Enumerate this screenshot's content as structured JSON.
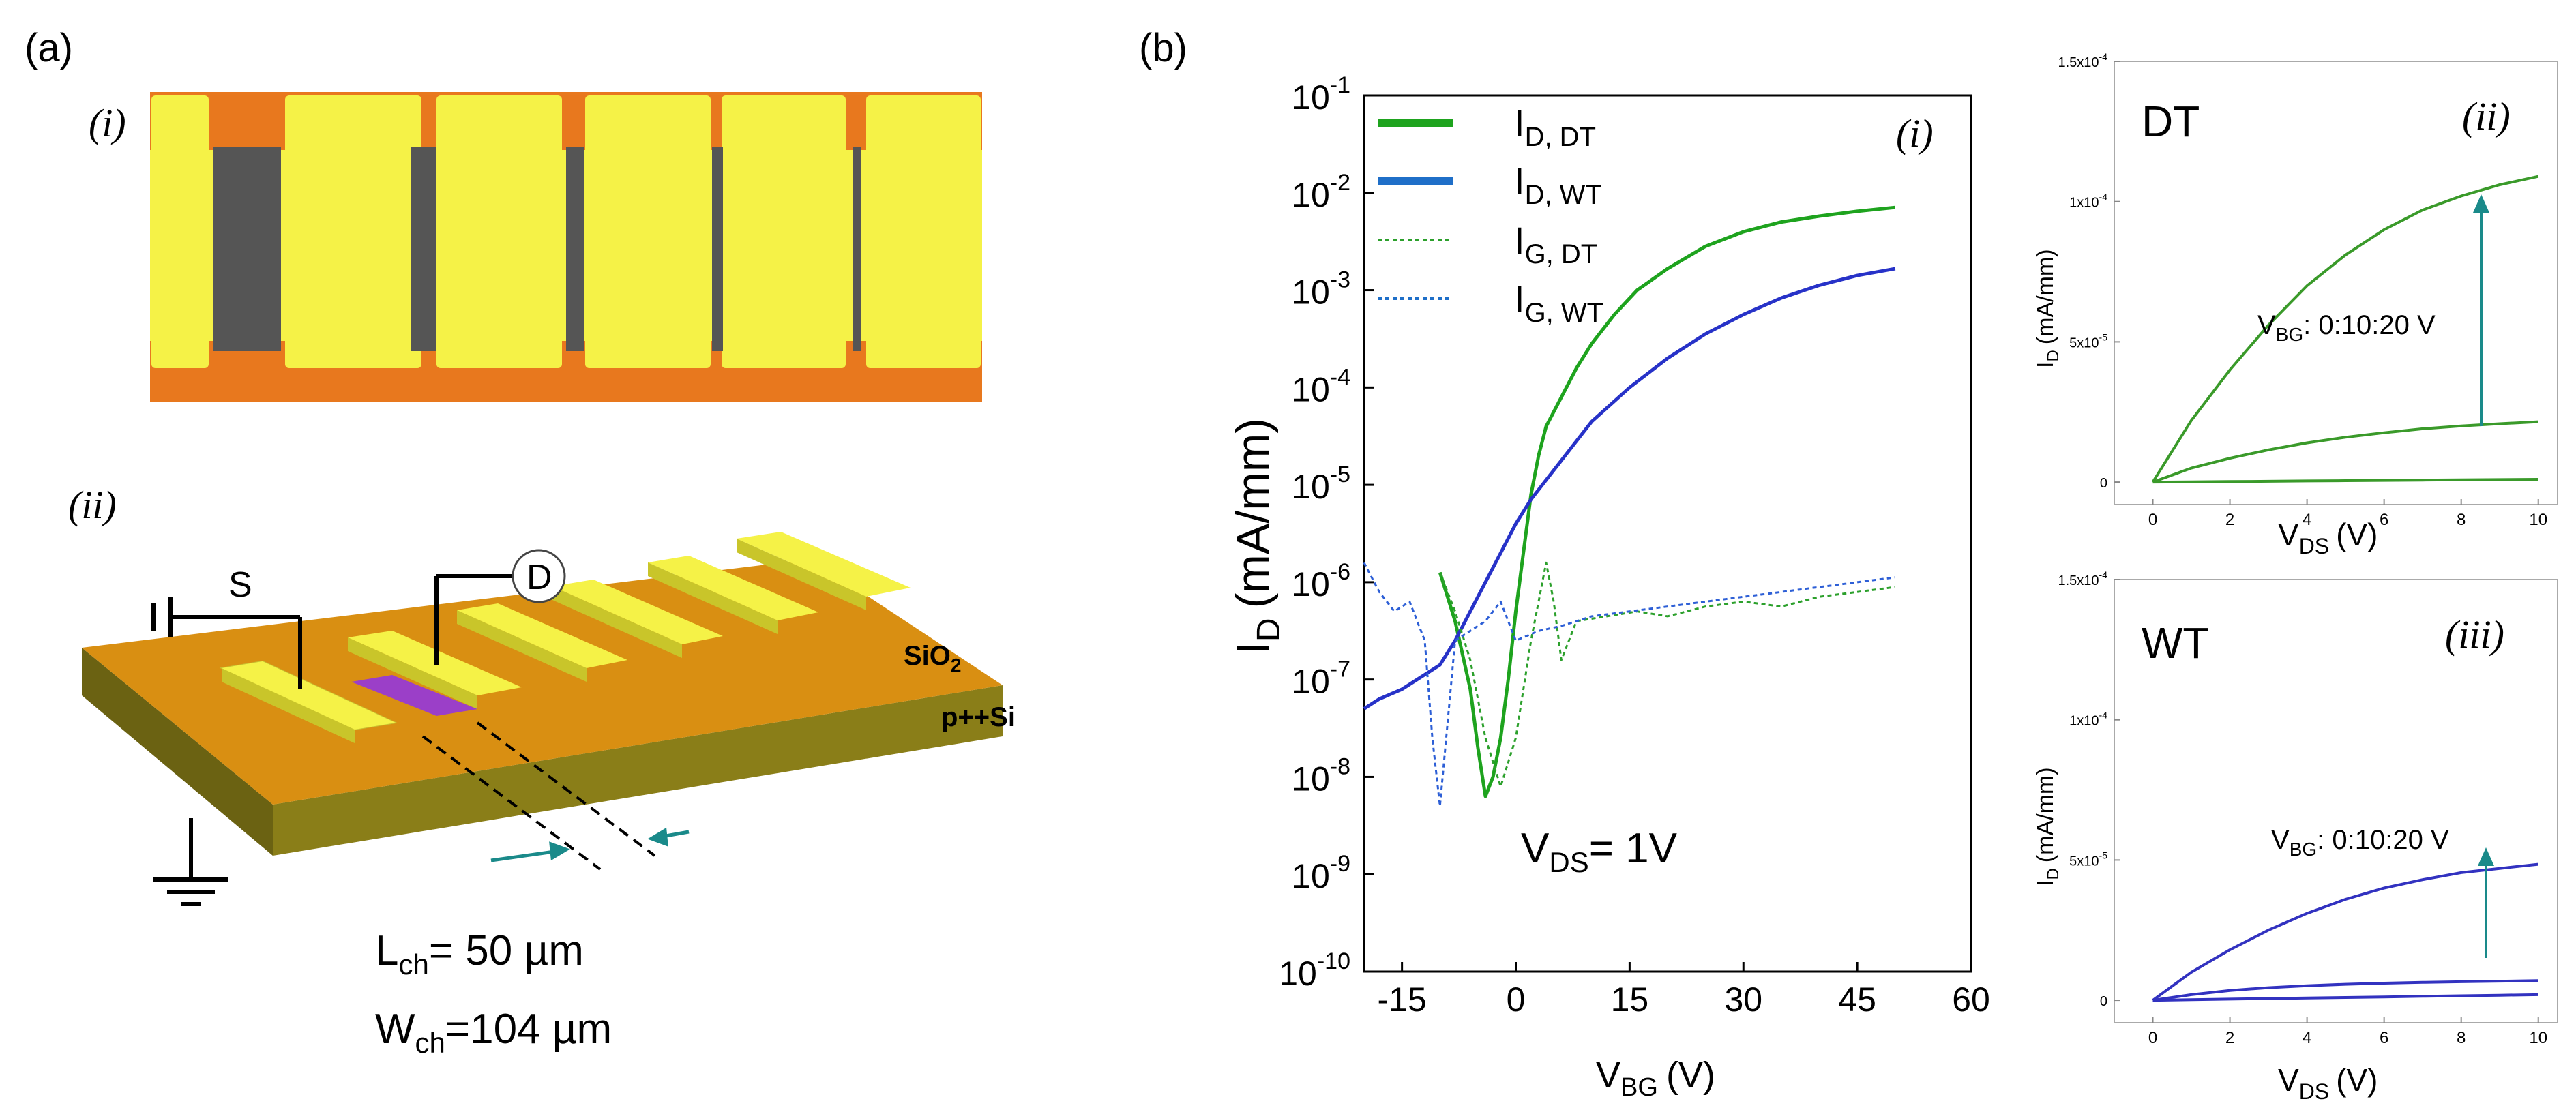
{
  "panel_a": {
    "label": "(a)",
    "sub_i": "(i)",
    "sub_ii": "(ii)",
    "source_label": "S",
    "drain_label": "D",
    "oxide_label": "SiO",
    "oxide_sub": "2",
    "substrate_label": "p++Si",
    "lch_main": "L",
    "lch_sub": "ch",
    "lch_value": "= 50 µm",
    "wch_main": "W",
    "wch_sub": "ch",
    "wch_value": "=104 µm",
    "colors": {
      "gold": "#f5f247",
      "orange": "#e8781e",
      "channel": "#555555",
      "oxide": "#d98f12",
      "silicon": "#7a6f10"
    }
  },
  "panel_b": {
    "label": "(b)",
    "sub_i": "(i)",
    "sub_ii": "(ii)",
    "sub_iii": "(iii)",
    "vds_main": "V",
    "vds_sub": "DS",
    "vds_value": "= 1V",
    "dt_label": "DT",
    "wt_label": "WT",
    "vbg_annot_main": "V",
    "vbg_annot_sub": "BG",
    "vbg_annot_value": ": 0:10:20 V"
  },
  "chart_data": [
    {
      "type": "line",
      "xlabel": "V",
      "xlabel_sub": "BG",
      "xlabel_unit": "(V)",
      "ylabel": "I",
      "ylabel_sub": "D",
      "ylabel_unit": "(mA/mm)",
      "xlim": [
        -20,
        60
      ],
      "ylim_log10": [
        -10,
        -1
      ],
      "y_scale": "log",
      "xticks": [
        "-15",
        "0",
        "15",
        "30",
        "45",
        "60"
      ],
      "ytick_exponents": [
        "-1",
        "-2",
        "-3",
        "-4",
        "-5",
        "-6",
        "-7",
        "-8",
        "-9",
        "-10"
      ],
      "legend_position": "top-left",
      "series": [
        {
          "name_main": "I",
          "name_sub": "D, DT",
          "color": "#1ea31e",
          "style": "solid",
          "x": [
            -10,
            -8,
            -6,
            -5,
            -4,
            -3,
            -2,
            -1,
            0,
            1,
            2,
            3,
            4,
            6,
            8,
            10,
            13,
            16,
            20,
            25,
            30,
            35,
            40,
            45,
            50
          ],
          "y_log10": [
            -5.9,
            -6.4,
            -7.1,
            -7.7,
            -8.2,
            -8.0,
            -7.6,
            -7.0,
            -6.3,
            -5.7,
            -5.1,
            -4.7,
            -4.4,
            -4.1,
            -3.8,
            -3.55,
            -3.25,
            -3.0,
            -2.78,
            -2.55,
            -2.4,
            -2.3,
            -2.24,
            -2.19,
            -2.15
          ]
        },
        {
          "name_main": "I",
          "name_sub": "D, WT",
          "color": "#2732c8",
          "style": "solid",
          "x": [
            -20,
            -18,
            -15,
            -12,
            -10,
            -8,
            -6,
            -4,
            -2,
            0,
            2,
            4,
            6,
            8,
            10,
            15,
            20,
            25,
            30,
            35,
            40,
            45,
            50
          ],
          "y_log10": [
            -7.3,
            -7.2,
            -7.1,
            -6.95,
            -6.85,
            -6.6,
            -6.3,
            -6.0,
            -5.7,
            -5.4,
            -5.15,
            -4.95,
            -4.75,
            -4.55,
            -4.35,
            -4.0,
            -3.7,
            -3.45,
            -3.25,
            -3.08,
            -2.95,
            -2.85,
            -2.78
          ]
        },
        {
          "name_main": "I",
          "name_sub": "G, DT",
          "color": "#2ca02c",
          "style": "dotted",
          "x": [
            -10,
            -8,
            -6,
            -4,
            -2,
            0,
            2,
            4,
            5,
            6,
            8,
            12,
            16,
            20,
            25,
            30,
            35,
            40,
            45,
            50
          ],
          "y_log10": [
            -5.9,
            -6.3,
            -6.8,
            -7.6,
            -8.1,
            -7.6,
            -6.6,
            -5.8,
            -6.2,
            -6.8,
            -6.4,
            -6.35,
            -6.3,
            -6.35,
            -6.25,
            -6.2,
            -6.25,
            -6.15,
            -6.1,
            -6.05
          ]
        },
        {
          "name_main": "I",
          "name_sub": "G, WT",
          "color": "#2d5fd6",
          "style": "dotted",
          "x": [
            -20,
            -18,
            -16,
            -14,
            -12,
            -11,
            -10,
            -8,
            -6,
            -4,
            -2,
            0,
            3,
            6,
            10,
            15,
            20,
            25,
            30,
            35,
            40,
            45,
            50
          ],
          "y_log10": [
            -5.8,
            -6.1,
            -6.3,
            -6.2,
            -6.6,
            -7.6,
            -8.3,
            -6.6,
            -6.5,
            -6.4,
            -6.2,
            -6.6,
            -6.5,
            -6.45,
            -6.35,
            -6.3,
            -6.25,
            -6.2,
            -6.15,
            -6.1,
            -6.05,
            -6.0,
            -5.95
          ]
        }
      ]
    },
    {
      "type": "line",
      "xlabel": "V",
      "xlabel_sub": "DS",
      "xlabel_unit": "(V)",
      "ylabel": "I",
      "ylabel_sub": "D",
      "ylabel_unit": "(mA/mm)",
      "xlim": [
        -1,
        10.5
      ],
      "ylim": [
        -0.08,
        1.5
      ],
      "yscale_exp": "-4",
      "xticks": [
        "0",
        "2",
        "4",
        "6",
        "8",
        "10"
      ],
      "yticks": [
        "0",
        "5x10",
        "1x10",
        "1.5x10"
      ],
      "ytick_exps": [
        "",
        "-5",
        "-4",
        "-4"
      ],
      "ytick_vals": [
        0,
        0.5,
        1.0,
        1.5
      ],
      "color": "#3a9a2a",
      "series": [
        {
          "x": [
            0,
            1,
            2,
            3,
            4,
            5,
            6,
            7,
            8,
            9,
            10
          ],
          "y": [
            0,
            0.001,
            0.002,
            0.003,
            0.004,
            0.005,
            0.006,
            0.007,
            0.008,
            0.009,
            0.01
          ]
        },
        {
          "x": [
            0,
            1,
            2,
            3,
            4,
            5,
            6,
            7,
            8,
            9,
            10
          ],
          "y": [
            0,
            0.05,
            0.085,
            0.115,
            0.14,
            0.16,
            0.176,
            0.19,
            0.2,
            0.208,
            0.215
          ]
        },
        {
          "x": [
            0,
            1,
            2,
            3,
            4,
            5,
            6,
            7,
            8,
            9,
            10
          ],
          "y": [
            0,
            0.22,
            0.4,
            0.56,
            0.7,
            0.81,
            0.9,
            0.97,
            1.02,
            1.06,
            1.09
          ]
        }
      ]
    },
    {
      "type": "line",
      "xlabel": "V",
      "xlabel_sub": "DS",
      "xlabel_unit": "(V)",
      "ylabel": "I",
      "ylabel_sub": "D",
      "ylabel_unit": "(mA/mm)",
      "xlim": [
        -1,
        10.5
      ],
      "ylim": [
        -0.08,
        1.5
      ],
      "xticks": [
        "0",
        "2",
        "4",
        "6",
        "8",
        "10"
      ],
      "yticks": [
        "0",
        "5x10",
        "1x10",
        "1.5x10"
      ],
      "ytick_exps": [
        "",
        "-5",
        "-4",
        "-4"
      ],
      "ytick_vals": [
        0,
        0.5,
        1.0,
        1.5
      ],
      "color": "#3232c0",
      "series": [
        {
          "x": [
            0,
            1,
            2,
            3,
            4,
            5,
            6,
            7,
            8,
            9,
            10
          ],
          "y": [
            0,
            0.002,
            0.004,
            0.006,
            0.008,
            0.01,
            0.012,
            0.014,
            0.016,
            0.018,
            0.02
          ]
        },
        {
          "x": [
            0,
            1,
            2,
            3,
            4,
            5,
            6,
            7,
            8,
            9,
            10
          ],
          "y": [
            0,
            0.02,
            0.035,
            0.045,
            0.052,
            0.057,
            0.061,
            0.064,
            0.066,
            0.068,
            0.07
          ]
        },
        {
          "x": [
            0,
            1,
            2,
            3,
            4,
            5,
            6,
            7,
            8,
            9,
            10
          ],
          "y": [
            0,
            0.1,
            0.18,
            0.25,
            0.31,
            0.36,
            0.4,
            0.43,
            0.455,
            0.47,
            0.485
          ]
        }
      ]
    }
  ]
}
